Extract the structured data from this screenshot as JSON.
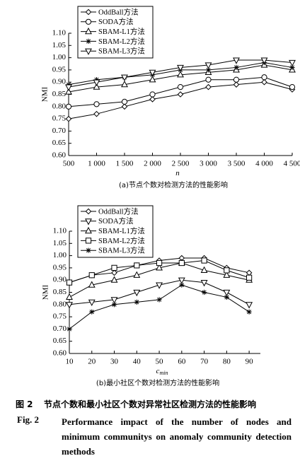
{
  "chart_data": [
    {
      "type": "line",
      "title": "(a)节点个数对检测方法的性能影响",
      "xlabel": "n",
      "ylabel": "NMI",
      "x": [
        500,
        1000,
        1500,
        2000,
        2500,
        3000,
        3500,
        4000,
        4500
      ],
      "xlim": [
        500,
        4500
      ],
      "xticks": [
        500,
        {
          "value": 1000,
          "label": "1 000"
        },
        {
          "value": 1500,
          "label": "1 500"
        },
        {
          "value": 2000,
          "label": "2 000"
        },
        {
          "value": 2500,
          "label": "2 500"
        },
        {
          "value": 3000,
          "label": "3 000"
        },
        {
          "value": 3500,
          "label": "3 500"
        },
        {
          "value": 4000,
          "label": "4 000"
        },
        {
          "value": 4500,
          "label": "4 500"
        }
      ],
      "ylim": [
        0.6,
        1.1
      ],
      "yticks": [
        {
          "value": 0.6,
          "label": "0.60"
        },
        0.65,
        {
          "value": 0.7,
          "label": "0.70"
        },
        0.75,
        {
          "value": 0.8,
          "label": "0.80"
        },
        0.85,
        {
          "value": 0.9,
          "label": "0.90"
        },
        0.95,
        {
          "value": 1,
          "label": "1.00"
        },
        1.05,
        {
          "value": 1.1,
          "label": "1.10"
        }
      ],
      "legend": "upper left",
      "series": [
        {
          "name": "OddBall方法",
          "color": "#000000",
          "marker": "diamond",
          "values": [
            0.75,
            0.77,
            0.8,
            0.83,
            0.85,
            0.88,
            0.89,
            0.9,
            0.87
          ]
        },
        {
          "name": "SODA方法",
          "color": "#000000",
          "marker": "circle",
          "values": [
            0.8,
            0.81,
            0.82,
            0.85,
            0.88,
            0.91,
            0.91,
            0.92,
            0.88
          ]
        },
        {
          "name": "SBAM-L1方法",
          "color": "#000000",
          "marker": "triangle-up",
          "values": [
            0.86,
            0.88,
            0.89,
            0.91,
            0.93,
            0.94,
            0.95,
            0.97,
            0.95
          ]
        },
        {
          "name": "SBAM-L2方法",
          "color": "#000000",
          "marker": "star",
          "values": [
            0.89,
            0.91,
            0.92,
            0.93,
            0.95,
            0.95,
            0.96,
            0.98,
            0.96
          ]
        },
        {
          "name": "SBAM-L3方法",
          "color": "#000000",
          "marker": "triangle-down",
          "values": [
            0.88,
            0.9,
            0.92,
            0.94,
            0.96,
            0.97,
            0.99,
            0.99,
            0.98
          ]
        }
      ]
    },
    {
      "type": "line",
      "title": "(b)最小社区个数对检测方法的性能影响",
      "xlabel": "c",
      "xlabel_subscript": "min",
      "ylabel": "NMI",
      "x": [
        10,
        20,
        30,
        40,
        50,
        60,
        70,
        80,
        90
      ],
      "xlim": [
        10,
        95
      ],
      "xticks": [
        10,
        20,
        30,
        40,
        50,
        60,
        70,
        80,
        90
      ],
      "ylim": [
        0.6,
        1.1
      ],
      "yticks": [
        {
          "value": 0.6,
          "label": "0.60"
        },
        0.65,
        {
          "value": 0.7,
          "label": "0.70"
        },
        0.75,
        {
          "value": 0.8,
          "label": "0.80"
        },
        0.85,
        {
          "value": 0.9,
          "label": "0.90"
        },
        0.95,
        {
          "value": 1,
          "label": "1.00"
        },
        1.05,
        {
          "value": 1.1,
          "label": "1.10"
        }
      ],
      "legend": "upper left",
      "series": [
        {
          "name": "OddBall方法",
          "color": "#000000",
          "marker": "diamond",
          "values": [
            0.89,
            0.92,
            0.93,
            0.96,
            0.98,
            0.99,
            0.99,
            0.95,
            0.93
          ]
        },
        {
          "name": "SODA方法",
          "color": "#000000",
          "marker": "triangle-down",
          "values": [
            0.8,
            0.81,
            0.82,
            0.85,
            0.88,
            0.9,
            0.89,
            0.85,
            0.8
          ]
        },
        {
          "name": "SBAM-L1方法",
          "color": "#000000",
          "marker": "triangle-up",
          "values": [
            0.83,
            0.88,
            0.9,
            0.92,
            0.95,
            0.97,
            0.94,
            0.92,
            0.9
          ]
        },
        {
          "name": "SBAM-L2方法",
          "color": "#000000",
          "marker": "square",
          "values": [
            0.89,
            0.92,
            0.95,
            0.96,
            0.97,
            0.97,
            0.98,
            0.94,
            0.91
          ]
        },
        {
          "name": "SBAM-L3方法",
          "color": "#000000",
          "marker": "star",
          "values": [
            0.7,
            0.77,
            0.8,
            0.81,
            0.82,
            0.88,
            0.85,
            0.83,
            0.77
          ]
        }
      ]
    }
  ],
  "figure_caption": {
    "cn_label": "图 2",
    "cn_text": "节点个数和最小社区个数对异常社区检测方法的性能影响",
    "en_label": "Fig. 2",
    "en_text": "Performance impact of the number of nodes and minimum communitys on anomaly community detection methods"
  }
}
